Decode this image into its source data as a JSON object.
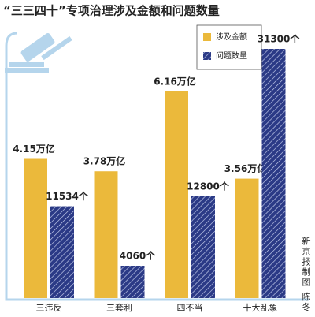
{
  "chart_data": {
    "type": "bar",
    "title": "“三三四十”专项治理涉及金额和问题数量",
    "source": "新京报制图 陈冬",
    "categories": [
      "三违反",
      "三套利",
      "四不当",
      "十大乱象"
    ],
    "series": [
      {
        "name": "涉及金额",
        "color": "#ebb93b",
        "values": [
          4.15,
          3.78,
          6.16,
          3.56
        ],
        "value_labels": [
          "4.15万亿",
          "3.78万亿",
          "6.16万亿",
          "3.56万亿"
        ]
      },
      {
        "name": "问题数量",
        "color": "#2b3a86",
        "axis": "y2",
        "hatch": true,
        "values": [
          11534,
          4060,
          12800,
          31300
        ],
        "value_labels": [
          "11534个",
          "4060个",
          "12800个",
          "31300个"
        ]
      }
    ]
  }
}
